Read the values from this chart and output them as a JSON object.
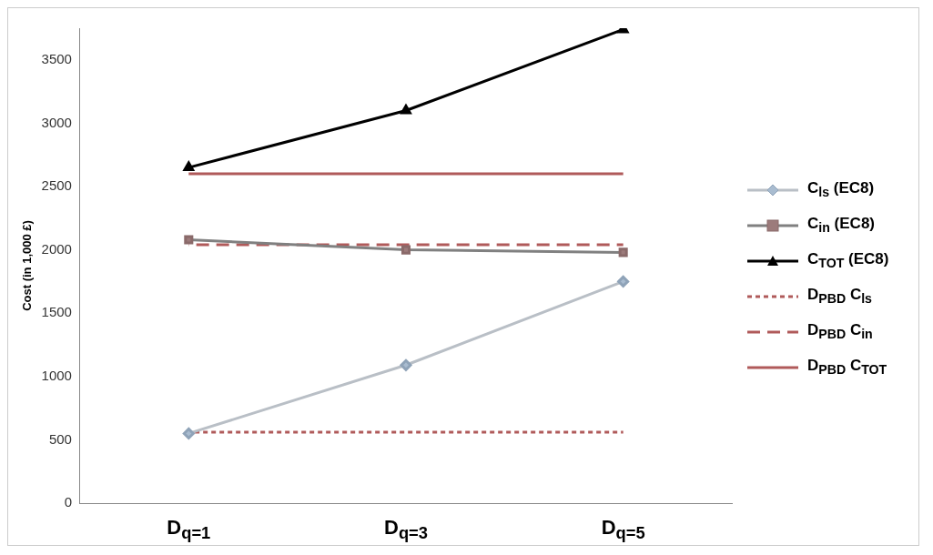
{
  "chart_data": {
    "type": "line",
    "ylabel": "Cost (in 1,000 £)",
    "categories": [
      "D$_{q=1}$",
      "D$_{q=3}$",
      "D$_{q=5}$"
    ],
    "ylim": [
      0,
      3750
    ],
    "yticks": [
      0,
      500,
      1000,
      1500,
      2000,
      2500,
      3000,
      3500
    ],
    "grid": false,
    "legend": "right",
    "series": [
      {
        "name": "C$_{ls}$ (EC8)",
        "color": "#b9bfc6",
        "values": [
          550,
          1090,
          1750
        ],
        "marker": "diamond",
        "line_style": "solid"
      },
      {
        "name": "C$_{in}$ (EC8)",
        "color": "#808080",
        "values": [
          2080,
          2000,
          1980
        ],
        "marker": "square",
        "line_style": "solid"
      },
      {
        "name": "C$_{TOT}$ (EC8)",
        "color": "#000000",
        "values": [
          2650,
          3100,
          3740
        ],
        "marker": "triangle",
        "line_style": "solid"
      },
      {
        "name": "D$_{PBD}$ C$_{ls}$",
        "color": "#b05a5a",
        "values": [
          560,
          560,
          560
        ],
        "marker": "none",
        "line_style": "dotted"
      },
      {
        "name": "D$_{PBD}$ C$_{in}$",
        "color": "#b05a5a",
        "values": [
          2040,
          2040,
          2040
        ],
        "marker": "none",
        "line_style": "dashed"
      },
      {
        "name": "D$_{PBD}$ C$_{TOT}$",
        "color": "#b05a5a",
        "values": [
          2600,
          2600,
          2600
        ],
        "marker": "none",
        "line_style": "solid"
      }
    ]
  }
}
